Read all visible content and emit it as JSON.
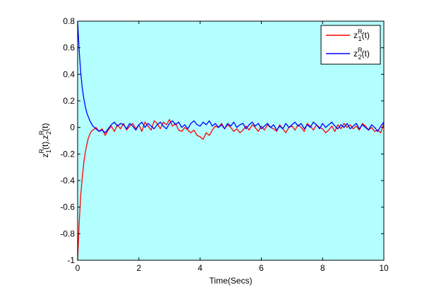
{
  "chart_data": {
    "type": "line",
    "title": "",
    "xlabel": "Time(Secs)",
    "ylabel_parts": [
      "z",
      "R",
      "1",
      "(t),",
      "z",
      "R",
      "2",
      "(t)"
    ],
    "xlim": [
      0,
      10
    ],
    "ylim": [
      -1,
      0.8
    ],
    "x_ticks": [
      "0",
      "2",
      "4",
      "6",
      "8",
      "10"
    ],
    "y_ticks": [
      "-1",
      "-0.8",
      "-0.6",
      "-0.4",
      "-0.2",
      "0",
      "0.2",
      "0.4",
      "0.6",
      "0.8"
    ],
    "grid": false,
    "legend_position": "top-right",
    "background_color": "#b3ffff",
    "series": [
      {
        "legend": {
          "base": "z",
          "sup": "R",
          "sub": "1",
          "suffix": "(t)"
        },
        "color": "#ff0000",
        "x": [
          0,
          0.05,
          0.1,
          0.15,
          0.2,
          0.25,
          0.3,
          0.35,
          0.4,
          0.45,
          0.5,
          0.55,
          0.6,
          0.7,
          0.8,
          0.9,
          1.0,
          1.1,
          1.2,
          1.3,
          1.4,
          1.5,
          1.6,
          1.7,
          1.8,
          1.9,
          2.0,
          2.1,
          2.2,
          2.3,
          2.4,
          2.5,
          2.6,
          2.7,
          2.8,
          2.9,
          3.0,
          3.1,
          3.2,
          3.3,
          3.4,
          3.5,
          3.6,
          3.7,
          3.8,
          3.9,
          4.0,
          4.1,
          4.2,
          4.3,
          4.4,
          4.5,
          4.6,
          4.7,
          4.8,
          4.9,
          5.0,
          5.1,
          5.2,
          5.3,
          5.4,
          5.5,
          5.6,
          5.7,
          5.8,
          5.9,
          6.0,
          6.1,
          6.2,
          6.3,
          6.4,
          6.5,
          6.6,
          6.7,
          6.8,
          6.9,
          7.0,
          7.1,
          7.2,
          7.3,
          7.4,
          7.5,
          7.6,
          7.7,
          7.8,
          7.9,
          8.0,
          8.1,
          8.2,
          8.3,
          8.4,
          8.5,
          8.6,
          8.7,
          8.8,
          8.9,
          9.0,
          9.1,
          9.2,
          9.3,
          9.4,
          9.5,
          9.6,
          9.7,
          9.8,
          9.9,
          10.0
        ],
        "y": [
          -1.0,
          -0.72,
          -0.52,
          -0.38,
          -0.27,
          -0.19,
          -0.13,
          -0.08,
          -0.05,
          -0.03,
          -0.02,
          -0.01,
          0.0,
          -0.03,
          -0.01,
          -0.06,
          -0.02,
          0.01,
          -0.03,
          0.02,
          -0.01,
          0.03,
          -0.02,
          0.01,
          0.03,
          -0.01,
          0.02,
          -0.03,
          0.04,
          0.01,
          -0.02,
          0.05,
          0.03,
          -0.01,
          0.04,
          0.02,
          0.06,
          0.01,
          0.03,
          -0.02,
          -0.03,
          0.0,
          -0.02,
          -0.04,
          -0.02,
          -0.06,
          -0.07,
          -0.09,
          -0.04,
          -0.06,
          -0.02,
          0.01,
          0.0,
          0.03,
          -0.01,
          0.02,
          0.0,
          -0.03,
          -0.01,
          -0.04,
          -0.02,
          0.01,
          -0.02,
          0.02,
          0.0,
          -0.03,
          0.01,
          -0.02,
          0.02,
          0.0,
          -0.01,
          -0.03,
          0.02,
          -0.01,
          -0.04,
          0.0,
          0.01,
          -0.02,
          0.02,
          0.0,
          -0.03,
          0.03,
          0.01,
          -0.02,
          0.02,
          0.0,
          -0.01,
          -0.04,
          -0.02,
          0.01,
          -0.03,
          0.02,
          -0.01,
          0.03,
          0.0,
          0.02,
          -0.01,
          0.01,
          -0.02,
          0.03,
          0.01,
          -0.02,
          0.0,
          -0.03,
          -0.02,
          -0.04,
          0.03
        ]
      },
      {
        "legend": {
          "base": "z",
          "sup": "R",
          "sub": "2",
          "suffix": "(t)"
        },
        "color": "#0000ff",
        "x": [
          0,
          0.05,
          0.1,
          0.15,
          0.2,
          0.25,
          0.3,
          0.35,
          0.4,
          0.45,
          0.5,
          0.55,
          0.6,
          0.7,
          0.8,
          0.9,
          1.0,
          1.1,
          1.2,
          1.3,
          1.4,
          1.5,
          1.6,
          1.7,
          1.8,
          1.9,
          2.0,
          2.1,
          2.2,
          2.3,
          2.4,
          2.5,
          2.6,
          2.7,
          2.8,
          2.9,
          3.0,
          3.1,
          3.2,
          3.3,
          3.4,
          3.5,
          3.6,
          3.7,
          3.8,
          3.9,
          4.0,
          4.1,
          4.2,
          4.3,
          4.4,
          4.5,
          4.6,
          4.7,
          4.8,
          4.9,
          5.0,
          5.1,
          5.2,
          5.3,
          5.4,
          5.5,
          5.6,
          5.7,
          5.8,
          5.9,
          6.0,
          6.1,
          6.2,
          6.3,
          6.4,
          6.5,
          6.6,
          6.7,
          6.8,
          6.9,
          7.0,
          7.1,
          7.2,
          7.3,
          7.4,
          7.5,
          7.6,
          7.7,
          7.8,
          7.9,
          8.0,
          8.1,
          8.2,
          8.3,
          8.4,
          8.5,
          8.6,
          8.7,
          8.8,
          8.9,
          9.0,
          9.1,
          9.2,
          9.3,
          9.4,
          9.5,
          9.6,
          9.7,
          9.8,
          9.9,
          10.0
        ],
        "y": [
          0.8,
          0.58,
          0.42,
          0.3,
          0.22,
          0.16,
          0.11,
          0.08,
          0.05,
          0.03,
          0.01,
          0.0,
          -0.01,
          -0.03,
          -0.02,
          -0.04,
          -0.01,
          0.02,
          0.04,
          0.01,
          0.03,
          0.02,
          -0.01,
          0.03,
          0.01,
          -0.02,
          0.02,
          0.04,
          0.0,
          0.03,
          0.01,
          -0.01,
          0.02,
          0.04,
          0.01,
          -0.01,
          0.03,
          0.05,
          0.02,
          0.04,
          0.0,
          0.02,
          -0.01,
          0.03,
          0.05,
          0.02,
          0.01,
          0.04,
          0.02,
          0.05,
          0.01,
          0.03,
          0.0,
          0.02,
          -0.01,
          0.03,
          0.01,
          0.04,
          0.0,
          0.02,
          0.03,
          -0.01,
          0.02,
          0.04,
          0.01,
          0.03,
          -0.01,
          0.01,
          0.03,
          0.0,
          0.02,
          -0.02,
          0.01,
          -0.01,
          0.03,
          0.0,
          0.02,
          0.04,
          0.01,
          0.03,
          -0.01,
          0.02,
          0.0,
          0.04,
          0.02,
          -0.01,
          0.03,
          0.0,
          0.02,
          0.04,
          0.01,
          -0.01,
          0.02,
          0.0,
          0.03,
          -0.01,
          0.01,
          0.03,
          -0.01,
          0.02,
          0.0,
          -0.02,
          0.02,
          0.0,
          -0.03,
          0.01,
          0.04
        ]
      }
    ]
  }
}
